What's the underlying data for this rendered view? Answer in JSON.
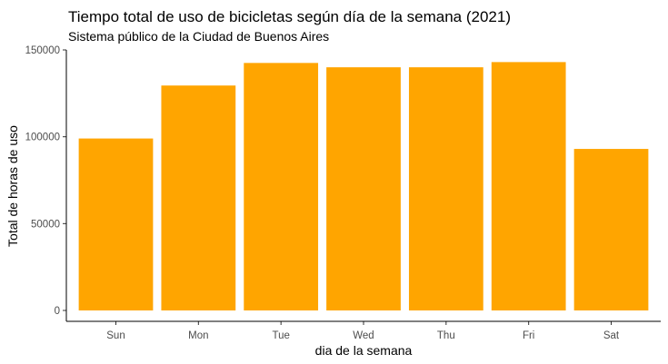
{
  "chart_data": {
    "type": "bar",
    "title": "Tiempo total de uso de bicicletas según día de la semana (2021)",
    "subtitle": "Sistema público de la Ciudad de Buenos Aires",
    "xlabel": "dia de la semana",
    "ylabel": "Total de horas de uso",
    "categories": [
      "Sun",
      "Mon",
      "Tue",
      "Wed",
      "Thu",
      "Fri",
      "Sat"
    ],
    "values": [
      99000,
      129500,
      142500,
      140000,
      140000,
      143000,
      93000
    ],
    "ylim": [
      0,
      150000
    ],
    "yticks": [
      0,
      50000,
      100000,
      150000
    ],
    "ytick_labels": [
      "0",
      "50000",
      "100000",
      "150000"
    ],
    "bar_color": "#FFA500",
    "grid": false,
    "legend": "none"
  }
}
